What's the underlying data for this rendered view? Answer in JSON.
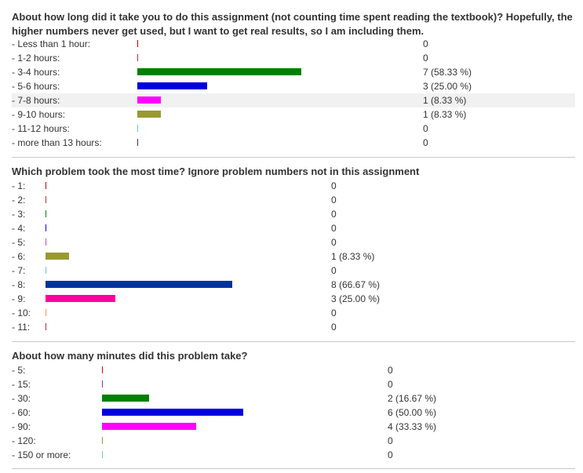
{
  "chart_data": [
    {
      "type": "bar",
      "title": "About how long did it take you to do this assignment (not counting time spent reading the textbook)? Hopefully, the higher numbers never get used, but I want to get real results, so I am including them.",
      "categories": [
        "- Less than 1 hour:",
        "- 1-2 hours:",
        "- 3-4 hours:",
        "- 5-6 hours:",
        "- 7-8 hours:",
        "- 9-10 hours:",
        "- 11-12 hours:",
        "- more than 13 hours:"
      ],
      "values": [
        0,
        0,
        7,
        3,
        1,
        1,
        0,
        0
      ],
      "value_labels": [
        "0",
        "0",
        "7 (58.33 %)",
        "3 (25.00 %)",
        "1 (8.33 %)",
        "1 (8.33 %)",
        "0",
        "0"
      ],
      "colors": [
        "#cc0000",
        "#aa3344",
        "#008000",
        "#0000dd",
        "#ff00ff",
        "#999933",
        "#66cccc",
        "#333366"
      ],
      "highlight_row": 4
    },
    {
      "type": "bar",
      "title": "Which problem took the most time? Ignore problem numbers not in this assignment",
      "categories": [
        "- 1:",
        "- 2:",
        "- 3:",
        "- 4:",
        "- 5:",
        "- 6:",
        "- 7:",
        "- 8:",
        "- 9:",
        "- 10:",
        "- 11:"
      ],
      "values": [
        0,
        0,
        0,
        0,
        0,
        1,
        0,
        8,
        3,
        0,
        0
      ],
      "value_labels": [
        "0",
        "0",
        "0",
        "0",
        "0",
        "1 (8.33 %)",
        "0",
        "8 (66.67 %)",
        "3 (25.00 %)",
        "0",
        "0"
      ],
      "colors": [
        "#cc0000",
        "#aa3344",
        "#008000",
        "#0000dd",
        "#cc44cc",
        "#999933",
        "#66cccc",
        "#003399",
        "#ff0099",
        "#ff9933",
        "#aa3344"
      ],
      "highlight_row": -1
    },
    {
      "type": "bar",
      "title": "About how many minutes did this problem take?",
      "categories": [
        "- 5:",
        "- 15:",
        "- 30:",
        "- 60:",
        "- 90:",
        "- 120:",
        "- 150 or more:"
      ],
      "values": [
        0,
        0,
        2,
        6,
        4,
        0,
        0
      ],
      "value_labels": [
        "0",
        "0",
        "2 (16.67 %)",
        "6 (50.00 %)",
        "4 (33.33 %)",
        "0",
        "0"
      ],
      "colors": [
        "#cc0000",
        "#aa3344",
        "#008000",
        "#0000dd",
        "#ff00ff",
        "#999933",
        "#66cccc"
      ],
      "highlight_row": -1
    }
  ]
}
